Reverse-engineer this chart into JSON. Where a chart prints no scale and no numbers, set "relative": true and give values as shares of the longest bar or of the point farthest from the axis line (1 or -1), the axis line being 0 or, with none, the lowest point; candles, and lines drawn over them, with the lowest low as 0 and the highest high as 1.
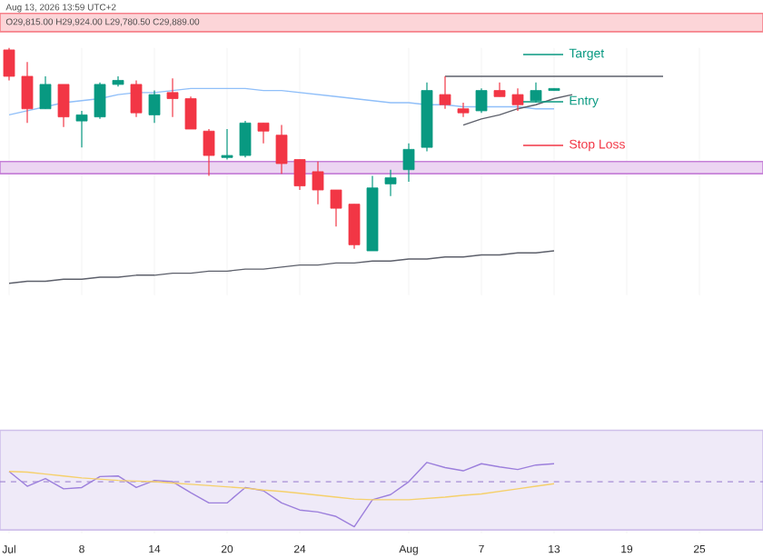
{
  "chart_data": [
    {
      "type": "candlestick",
      "relative": true,
      "grid": "x",
      "tick_labels": false,
      "categories": [
        null,
        null,
        null,
        null,
        null,
        null,
        null,
        null,
        null,
        null,
        null,
        null,
        null,
        null,
        null,
        null,
        null,
        null,
        null,
        null,
        null,
        null,
        null,
        null,
        null,
        null,
        null,
        null,
        null,
        null,
        null,
        null,
        null,
        null,
        null,
        null,
        null,
        null,
        null,
        null,
        null,
        null
      ],
      "ohlc": [
        [
          0.99,
          1.0,
          0.84,
          0.86
        ],
        [
          0.86,
          0.93,
          0.63,
          0.7
        ],
        [
          0.7,
          0.86,
          0.7,
          0.82
        ],
        [
          0.82,
          0.82,
          0.61,
          0.66
        ],
        [
          0.64,
          0.69,
          0.51,
          0.67
        ],
        [
          0.66,
          0.83,
          0.65,
          0.82
        ],
        [
          0.82,
          0.86,
          0.81,
          0.84
        ],
        [
          0.82,
          0.84,
          0.66,
          0.68
        ],
        [
          0.67,
          0.79,
          0.63,
          0.77
        ],
        [
          0.78,
          0.85,
          0.66,
          0.75
        ],
        [
          0.75,
          0.76,
          0.6,
          0.6
        ],
        [
          0.59,
          0.6,
          0.37,
          0.47
        ],
        [
          0.46,
          0.6,
          0.45,
          0.47
        ],
        [
          0.47,
          0.64,
          0.46,
          0.63
        ],
        [
          0.63,
          0.63,
          0.53,
          0.59
        ],
        [
          0.57,
          0.62,
          0.38,
          0.43
        ],
        [
          0.45,
          0.45,
          0.3,
          0.32
        ],
        [
          0.39,
          0.44,
          0.23,
          0.3
        ],
        [
          0.3,
          0.3,
          0.12,
          0.21
        ],
        [
          0.23,
          0.23,
          0.01,
          0.03
        ],
        [
          0,
          0.37,
          0,
          0.31
        ],
        [
          0.33,
          0.4,
          0.27,
          0.36
        ],
        [
          0.4,
          0.53,
          0.34,
          0.5
        ],
        [
          0.51,
          0.83,
          0.49,
          0.79
        ],
        [
          0.77,
          0.86,
          0.7,
          0.72
        ],
        [
          0.7,
          0.73,
          0.66,
          0.68
        ],
        [
          0.69,
          0.8,
          0.68,
          0.79
        ],
        [
          0.79,
          0.83,
          0.76,
          0.76
        ],
        [
          0.77,
          0.8,
          0.69,
          0.72
        ],
        [
          0.74,
          0.83,
          0.73,
          0.79
        ],
        [
          0.79,
          0.8,
          0.79,
          0.8
        ],
        null,
        null,
        null,
        null,
        null,
        null,
        null,
        null,
        null,
        null,
        null
      ],
      "series": [
        {
          "type": "line",
          "color": "#90bff9",
          "values": [
            0.67,
            0.69,
            0.71,
            0.73,
            0.74,
            0.75,
            0.77,
            0.78,
            0.78,
            0.79,
            0.8,
            0.8,
            0.8,
            0.8,
            0.79,
            0.79,
            0.78,
            0.77,
            0.76,
            0.75,
            0.74,
            0.73,
            0.73,
            0.72,
            0.72,
            0.71,
            0.71,
            0.71,
            0.71,
            0.7,
            0.7,
            null,
            null,
            null,
            null,
            null,
            null,
            null,
            null,
            null,
            null,
            null
          ]
        },
        {
          "type": "line",
          "color": "#5d606b",
          "values": [
            -0.16,
            -0.15,
            -0.15,
            -0.14,
            -0.14,
            -0.13,
            -0.13,
            -0.12,
            -0.12,
            -0.11,
            -0.11,
            -0.1,
            -0.1,
            -0.09,
            -0.09,
            -0.08,
            -0.07,
            -0.07,
            -0.06,
            -0.06,
            -0.05,
            -0.05,
            -0.04,
            -0.04,
            -0.03,
            -0.03,
            -0.02,
            -0.02,
            -0.01,
            -0.01,
            0,
            null,
            null,
            null,
            null,
            null,
            null,
            null,
            null,
            null,
            null,
            null
          ]
        },
        {
          "type": "line",
          "color": "#5d606b",
          "values": [
            null,
            null,
            null,
            null,
            null,
            null,
            null,
            null,
            null,
            null,
            null,
            null,
            null,
            null,
            null,
            null,
            null,
            null,
            null,
            null,
            null,
            null,
            null,
            null,
            0.86,
            0.86,
            0.86,
            0.86,
            0.86,
            0.86,
            0.86,
            0.86,
            0.86,
            0.86,
            0.86,
            0.86,
            0.86,
            null,
            null,
            null,
            null,
            null
          ]
        },
        {
          "type": "line",
          "color": "#5d606b",
          "values": [
            null,
            null,
            null,
            null,
            null,
            null,
            null,
            null,
            null,
            null,
            null,
            null,
            null,
            null,
            null,
            null,
            null,
            null,
            null,
            null,
            null,
            null,
            null,
            null,
            null,
            0.62,
            0.65,
            0.67,
            0.7,
            0.72,
            0.75,
            0.77,
            null,
            null,
            null,
            null,
            null,
            null,
            null,
            null,
            null,
            null
          ]
        }
      ],
      "bands": [
        {
          "axis": "y",
          "from": 1.08,
          "to": 1.17,
          "color": "#fcd5d8"
        },
        {
          "axis": "y",
          "from": 0.38,
          "to": 0.44,
          "color": "#ecd5f2"
        }
      ],
      "annotations": [
        "Aug 13, 2026 13:59 UTC+2",
        "O29,815.00 H29,924.00 L29,780.50 C29,889.00",
        "Target",
        "Entry",
        "Stop Loss"
      ]
    },
    {
      "type": "line",
      "relative": true,
      "grid": "x",
      "tick_labels": "x",
      "categories": [
        "Jul",
        null,
        null,
        null,
        "8",
        null,
        null,
        null,
        "14",
        null,
        null,
        null,
        "20",
        null,
        null,
        null,
        "24",
        null,
        null,
        null,
        null,
        null,
        "Aug",
        null,
        null,
        null,
        "7",
        null,
        null,
        null,
        "13",
        null,
        null,
        null,
        "19",
        null,
        null,
        null,
        "25",
        null,
        null,
        null
      ],
      "series": [
        {
          "color": "#9c7fdc",
          "values": [
            0.86,
            0.63,
            0.75,
            0.59,
            0.61,
            0.78,
            0.79,
            0.61,
            0.72,
            0.7,
            0.53,
            0.37,
            0.37,
            0.61,
            0.56,
            0.37,
            0.26,
            0.23,
            0.16,
            0,
            0.42,
            0.5,
            0.7,
            1,
            0.92,
            0.87,
            0.98,
            0.93,
            0.89,
            0.96,
            0.98,
            null,
            null,
            null,
            null,
            null,
            null,
            null,
            null,
            null,
            null,
            null
          ]
        },
        {
          "color": "#f5d06b",
          "values": [
            0.86,
            0.85,
            0.82,
            0.79,
            0.76,
            0.74,
            0.72,
            0.71,
            0.7,
            0.68,
            0.66,
            0.64,
            0.62,
            0.6,
            0.57,
            0.55,
            0.52,
            0.49,
            0.46,
            0.43,
            0.42,
            0.42,
            0.42,
            0.44,
            0.46,
            0.49,
            0.51,
            0.55,
            0.59,
            0.63,
            0.67,
            null,
            null,
            null,
            null,
            null,
            null,
            null,
            null,
            null,
            null,
            null
          ]
        }
      ],
      "bands": [
        {
          "axis": "y",
          "from": -0.05,
          "to": 1.5,
          "color": "#efeaf8"
        }
      ],
      "ref_lines": [
        {
          "axis": "y",
          "value": 0.7,
          "color": "#9575cd",
          "line_style": "dashed"
        }
      ]
    }
  ]
}
